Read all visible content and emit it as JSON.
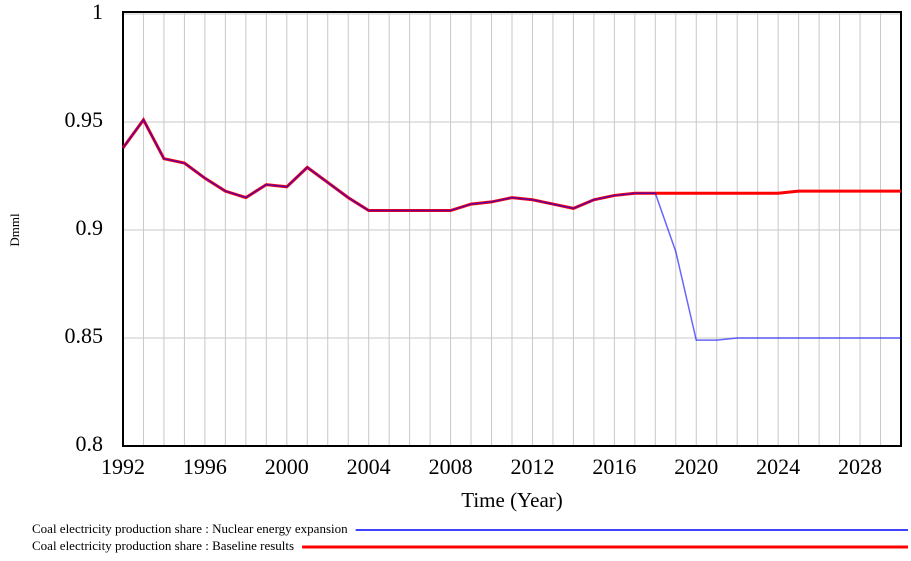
{
  "chart_data": {
    "type": "line",
    "x_label": "Time (Year)",
    "y_label": "Dmml",
    "x": [
      1992,
      1993,
      1994,
      1995,
      1996,
      1997,
      1998,
      1999,
      2000,
      2001,
      2002,
      2003,
      2004,
      2005,
      2006,
      2007,
      2008,
      2009,
      2010,
      2011,
      2012,
      2013,
      2014,
      2015,
      2016,
      2017,
      2018,
      2019,
      2020,
      2021,
      2022,
      2023,
      2024,
      2025,
      2026,
      2027,
      2028,
      2029,
      2030
    ],
    "series": [
      {
        "name": "Coal electricity production share : Nuclear energy expansion",
        "color": "#0000ff",
        "values": [
          0.938,
          0.951,
          0.933,
          0.931,
          0.924,
          0.918,
          0.915,
          0.921,
          0.92,
          0.929,
          0.922,
          0.915,
          0.909,
          0.909,
          0.909,
          0.909,
          0.909,
          0.912,
          0.913,
          0.915,
          0.914,
          0.912,
          0.91,
          0.914,
          0.916,
          0.917,
          0.917,
          0.89,
          0.849,
          0.849,
          0.85,
          0.85,
          0.85,
          0.85,
          0.85,
          0.85,
          0.85,
          0.85,
          0.85
        ]
      },
      {
        "name": "Coal electricity production share : Baseline results",
        "color": "#ff0000",
        "values": [
          0.938,
          0.951,
          0.933,
          0.931,
          0.924,
          0.918,
          0.915,
          0.921,
          0.92,
          0.929,
          0.922,
          0.915,
          0.909,
          0.909,
          0.909,
          0.909,
          0.909,
          0.912,
          0.913,
          0.915,
          0.914,
          0.912,
          0.91,
          0.914,
          0.916,
          0.917,
          0.917,
          0.917,
          0.917,
          0.917,
          0.917,
          0.917,
          0.917,
          0.918,
          0.918,
          0.918,
          0.918,
          0.918,
          0.918
        ]
      }
    ],
    "xlim": [
      1992,
      2030
    ],
    "xticks": [
      1992,
      1996,
      2000,
      2004,
      2008,
      2012,
      2016,
      2020,
      2024,
      2028
    ],
    "ylim": [
      0.8,
      1
    ],
    "yticks": [
      0.8,
      0.85,
      0.9,
      0.95,
      1
    ],
    "grid": true
  }
}
